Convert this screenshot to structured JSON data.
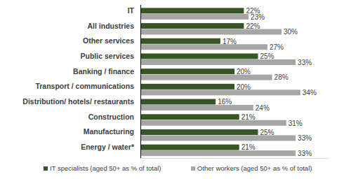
{
  "chart_data": {
    "type": "bar",
    "orientation": "horizontal",
    "categories": [
      "IT",
      "All industries",
      "Other services",
      "Public services",
      "Banking / finance",
      "Transport / communications",
      "Distribution/ hotels/ restaurants",
      "Construction",
      "Manufacturing",
      "Energy / water*"
    ],
    "series": [
      {
        "name": "IT specialists (aged 50+ as % of total)",
        "color": "#375623",
        "values": [
          22,
          22,
          17,
          25,
          20,
          20,
          16,
          21,
          25,
          21
        ],
        "value_labels": [
          "22%",
          "22%",
          "17%",
          "25%",
          "20%",
          "20%",
          "16%",
          "21%",
          "25%",
          "21%"
        ]
      },
      {
        "name": "Other workers (aged 50+ as % of total)",
        "color": "#a6a6a6",
        "values": [
          23,
          30,
          27,
          33,
          28,
          34,
          24,
          31,
          33,
          33
        ],
        "value_labels": [
          "23%",
          "30%",
          "27%",
          "33%",
          "28%",
          "34%",
          "24%",
          "31%",
          "33%",
          "33%"
        ]
      }
    ],
    "xlim": [
      0,
      40
    ],
    "data_labels": true,
    "tick_labels": "y",
    "grid": false,
    "legend": "bottom"
  }
}
